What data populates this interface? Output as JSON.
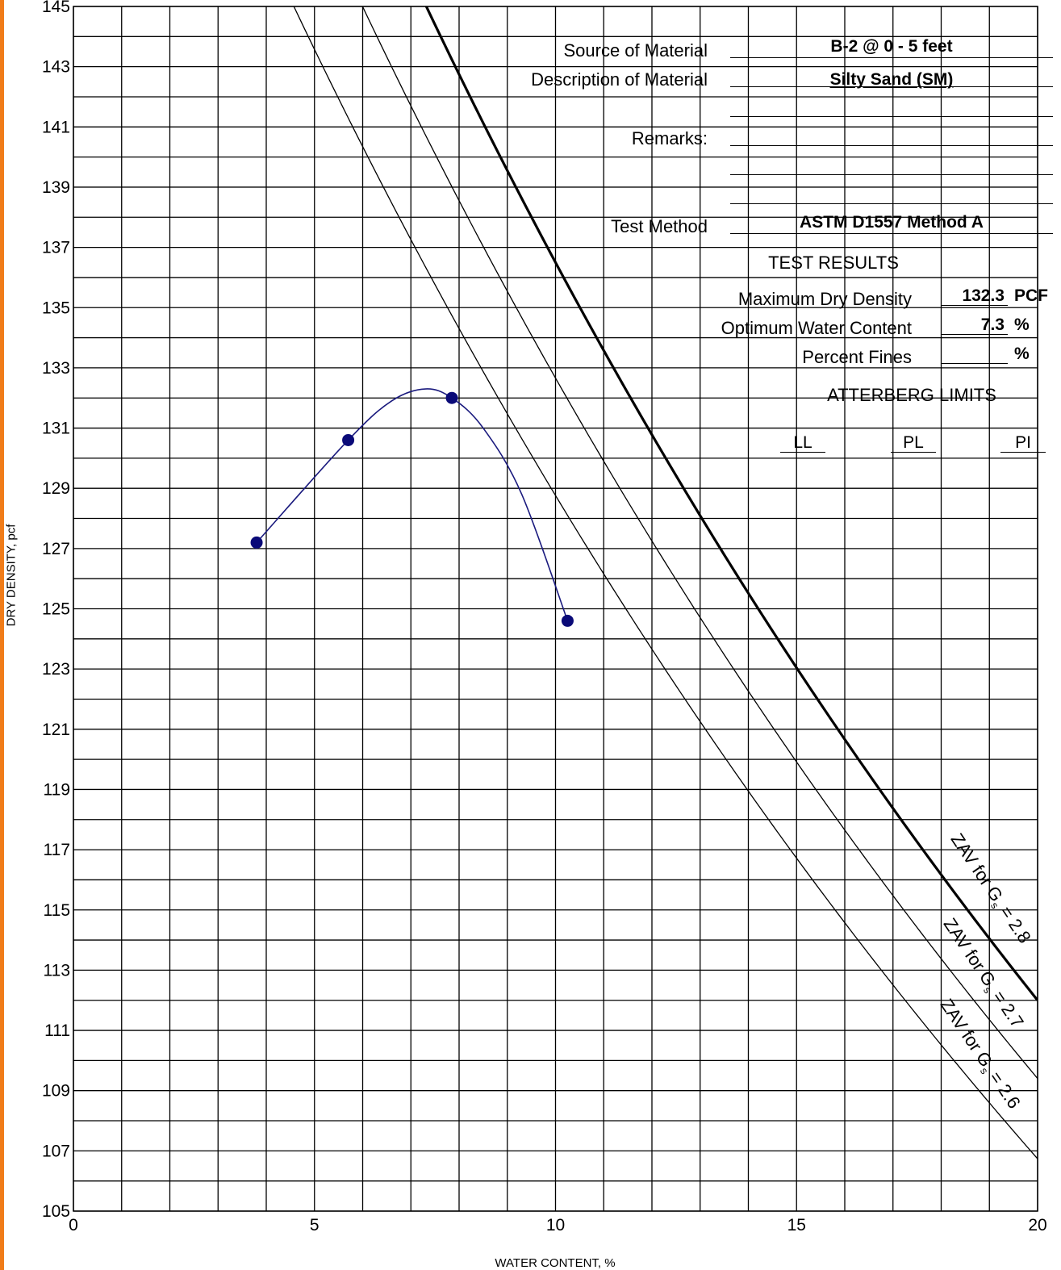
{
  "colors": {
    "edge": "#f07c19",
    "grid": "#000000",
    "curve": "#1a1a7e",
    "point": "#0a0a78"
  },
  "chart_data": {
    "type": "scatter",
    "xlabel": "WATER CONTENT, %",
    "ylabel": "DRY DENSITY, pcf",
    "xlim": [
      0,
      20
    ],
    "ylim": [
      105,
      145
    ],
    "x_ticks": [
      "0",
      "5",
      "10",
      "15",
      "20"
    ],
    "y_ticks": [
      "105",
      "107",
      "109",
      "111",
      "113",
      "115",
      "117",
      "119",
      "121",
      "123",
      "125",
      "127",
      "129",
      "131",
      "133",
      "135",
      "137",
      "139",
      "141",
      "143",
      "145"
    ],
    "grid": true,
    "grid_x_step": 1,
    "grid_y_step": 1,
    "series": [
      {
        "type": "scatter",
        "points": [
          {
            "x": 3.8,
            "y": 127.2
          },
          {
            "x": 5.7,
            "y": 130.6
          },
          {
            "x": 7.85,
            "y": 132.0
          },
          {
            "x": 10.25,
            "y": 124.6
          }
        ]
      },
      {
        "type": "line",
        "points": [
          {
            "x": 3.8,
            "y": 127.2
          },
          {
            "x": 5.7,
            "y": 130.6
          },
          {
            "x": 6.6,
            "y": 131.9
          },
          {
            "x": 7.3,
            "y": 132.3
          },
          {
            "x": 7.85,
            "y": 132.0
          },
          {
            "x": 8.5,
            "y": 131.0
          },
          {
            "x": 9.3,
            "y": 128.8
          },
          {
            "x": 10.25,
            "y": 124.6
          }
        ]
      }
    ],
    "zav_curves": [
      {
        "gs": 2.8,
        "label_parts": [
          "ZAV for G",
          "s",
          " = 2.8"
        ],
        "bold": true
      },
      {
        "gs": 2.7,
        "label_parts": [
          "ZAV for G",
          "s",
          " = 2.7"
        ],
        "bold": false
      },
      {
        "gs": 2.6,
        "label_parts": [
          "ZAV for G",
          "s",
          " = 2.6"
        ],
        "bold": false
      }
    ]
  },
  "form": {
    "source_label": "Source of Material",
    "source_value": "B-2 @ 0 - 5 feet",
    "description_label": "Description of Material",
    "description_value": "Silty Sand (SM)",
    "remarks_label": "Remarks:",
    "method_label": "Test Method",
    "method_value": "ASTM D1557 Method A",
    "results_heading": "TEST RESULTS",
    "max_density_label": "Maximum Dry Density",
    "max_density_value": "132.3",
    "max_density_unit": "PCF",
    "opt_water_label": "Optimum Water Content",
    "opt_water_value": "7.3",
    "opt_water_unit": "%",
    "fines_label": "Percent Fines",
    "fines_value": "",
    "fines_unit": "%",
    "atterberg_heading": "ATTERBERG LIMITS",
    "ll_label": "LL",
    "pl_label": "PL",
    "pi_label": "PI"
  }
}
